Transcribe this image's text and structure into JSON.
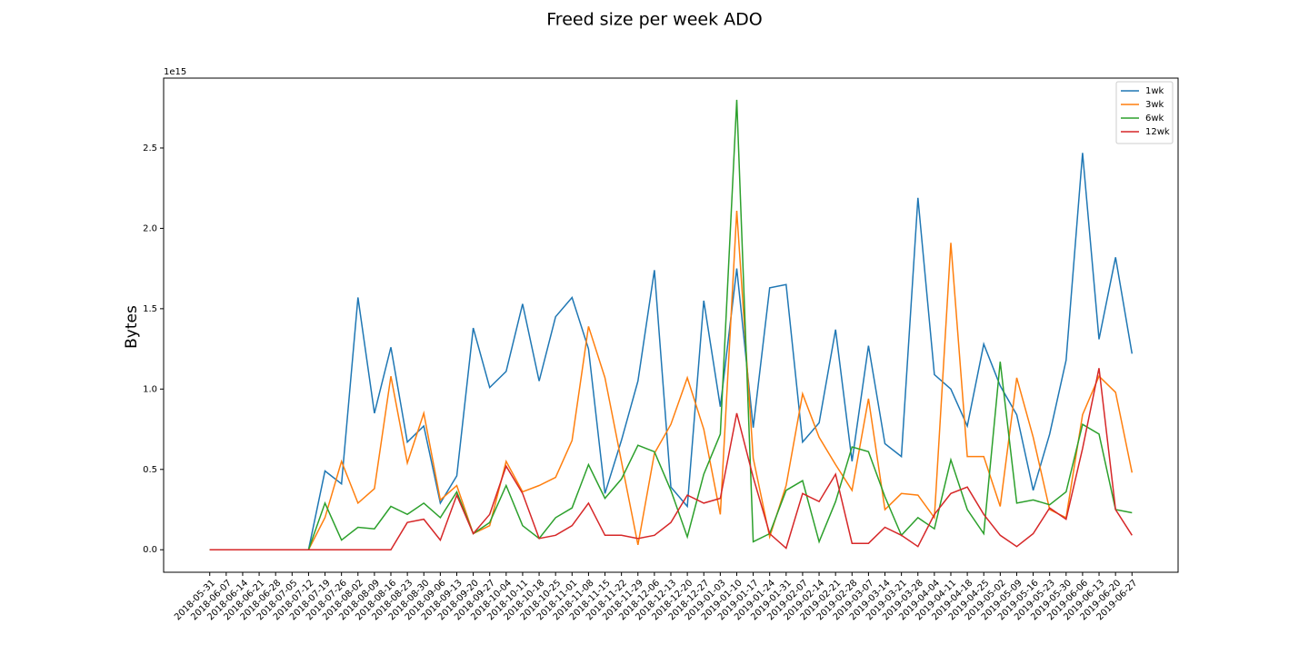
{
  "chart_data": {
    "type": "line",
    "title": "Freed size per week ADO",
    "ylabel": "Bytes",
    "offset_text": "1e15",
    "categories": [
      "2018-05-31",
      "2018-06-07",
      "2018-06-14",
      "2018-06-21",
      "2018-06-28",
      "2018-07-05",
      "2018-07-12",
      "2018-07-19",
      "2018-07-26",
      "2018-08-02",
      "2018-08-09",
      "2018-08-16",
      "2018-08-23",
      "2018-08-30",
      "2018-09-06",
      "2018-09-13",
      "2018-09-20",
      "2018-09-27",
      "2018-10-04",
      "2018-10-11",
      "2018-10-18",
      "2018-10-25",
      "2018-11-01",
      "2018-11-08",
      "2018-11-15",
      "2018-11-22",
      "2018-11-29",
      "2018-12-06",
      "2018-12-13",
      "2018-12-20",
      "2018-12-27",
      "2019-01-03",
      "2019-01-10",
      "2019-01-17",
      "2019-01-24",
      "2019-01-31",
      "2019-02-07",
      "2019-02-14",
      "2019-02-21",
      "2019-02-28",
      "2019-03-07",
      "2019-03-14",
      "2019-03-21",
      "2019-03-28",
      "2019-04-04",
      "2019-04-11",
      "2019-04-18",
      "2019-04-25",
      "2019-05-02",
      "2019-05-09",
      "2019-05-16",
      "2019-05-23",
      "2019-05-30",
      "2019-06-06",
      "2019-06-13",
      "2019-06-20",
      "2019-06-27"
    ],
    "series": [
      {
        "name": "1wk",
        "color": "#1f77b4",
        "values": [
          0,
          0,
          0,
          0,
          0,
          0,
          0,
          0.49,
          0.41,
          1.57,
          0.85,
          1.26,
          0.67,
          0.77,
          0.29,
          0.46,
          1.38,
          1.01,
          1.11,
          1.53,
          1.05,
          1.45,
          1.57,
          1.25,
          0.35,
          0.68,
          1.05,
          1.74,
          0.39,
          0.27,
          1.55,
          0.89,
          1.75,
          0.76,
          1.63,
          1.65,
          0.67,
          0.79,
          1.37,
          0.55,
          1.27,
          0.66,
          0.58,
          2.19,
          1.09,
          1.0,
          0.77,
          1.28,
          1.02,
          0.84,
          0.37,
          0.72,
          1.18,
          2.47,
          1.31,
          1.82,
          1.22
        ]
      },
      {
        "name": "3wk",
        "color": "#ff7f0e",
        "values": [
          0,
          0,
          0,
          0,
          0,
          0,
          0,
          0.2,
          0.55,
          0.29,
          0.38,
          1.08,
          0.54,
          0.85,
          0.31,
          0.4,
          0.1,
          0.15,
          0.55,
          0.36,
          0.4,
          0.45,
          0.68,
          1.39,
          1.07,
          0.55,
          0.03,
          0.6,
          0.78,
          1.07,
          0.75,
          0.22,
          2.11,
          0.57,
          0.08,
          0.4,
          0.97,
          0.7,
          0.53,
          0.37,
          0.94,
          0.25,
          0.35,
          0.34,
          0.2,
          1.91,
          0.58,
          0.58,
          0.27,
          1.07,
          0.7,
          0.25,
          0.2,
          0.84,
          1.08,
          0.98,
          0.48
        ]
      },
      {
        "name": "6wk",
        "color": "#2ca02c",
        "values": [
          0,
          0,
          0,
          0,
          0,
          0,
          0,
          0.29,
          0.06,
          0.14,
          0.13,
          0.27,
          0.22,
          0.29,
          0.2,
          0.36,
          0.1,
          0.17,
          0.4,
          0.15,
          0.07,
          0.2,
          0.26,
          0.53,
          0.32,
          0.44,
          0.65,
          0.61,
          0.37,
          0.08,
          0.47,
          0.72,
          2.8,
          0.05,
          0.1,
          0.37,
          0.43,
          0.05,
          0.3,
          0.64,
          0.61,
          0.33,
          0.09,
          0.2,
          0.13,
          0.56,
          0.25,
          0.1,
          1.17,
          0.29,
          0.31,
          0.28,
          0.36,
          0.78,
          0.72,
          0.25,
          0.23
        ]
      },
      {
        "name": "12wk",
        "color": "#d62728",
        "values": [
          0,
          0,
          0,
          0,
          0,
          0,
          0,
          0,
          0,
          0,
          0,
          0,
          0.17,
          0.19,
          0.06,
          0.34,
          0.1,
          0.22,
          0.52,
          0.35,
          0.07,
          0.09,
          0.15,
          0.29,
          0.09,
          0.09,
          0.07,
          0.09,
          0.17,
          0.34,
          0.29,
          0.32,
          0.85,
          0.45,
          0.1,
          0.01,
          0.35,
          0.3,
          0.47,
          0.04,
          0.04,
          0.14,
          0.09,
          0.02,
          0.22,
          0.35,
          0.39,
          0.22,
          0.09,
          0.02,
          0.1,
          0.26,
          0.19,
          0.63,
          1.13,
          0.25,
          0.09
        ]
      }
    ],
    "ylim": [
      -0.14,
      2.935
    ],
    "yticks": [
      {
        "value": 0,
        "label": "0.0"
      },
      0.5,
      {
        "value": 1,
        "label": "1.0"
      },
      1.5,
      {
        "value": 2,
        "label": "2.0"
      },
      2.5
    ],
    "legend": "upper right",
    "grid": false
  }
}
